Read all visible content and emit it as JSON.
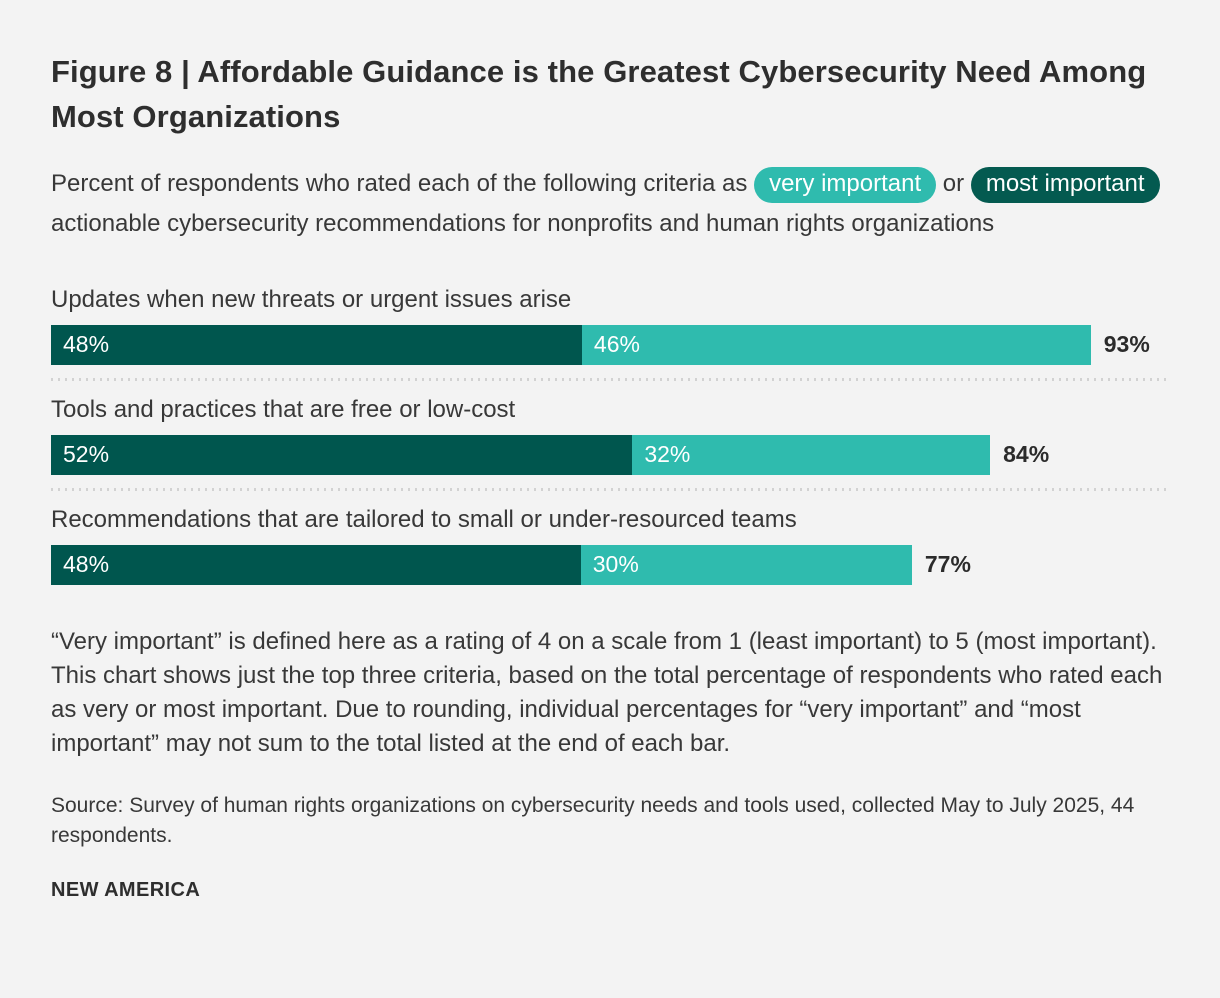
{
  "header": {
    "title": "Figure 8 | Affordable Guidance is the Greatest Cybersecurity Need Among Most Organizations",
    "subtitle_prefix": "Percent of respondents who rated each of the following criteria as ",
    "badge_very": "very important",
    "subtitle_middle": " or ",
    "badge_most": "most important",
    "subtitle_suffix": " actionable cybersecurity recommendations for nonprofits and human rights organizations"
  },
  "colors": {
    "most_important": "#00564e",
    "very_important": "#2fbbae",
    "background": "#f3f3f3",
    "text": "#383838",
    "total_label": "#2b2b2b"
  },
  "chart_data": {
    "type": "bar",
    "orientation": "horizontal",
    "stacked": true,
    "unit": "%",
    "xlim": [
      0,
      100
    ],
    "grid": false,
    "legend_position": "inline-subtitle-badges",
    "series_names": [
      "most important",
      "very important"
    ],
    "categories": [
      "Updates when new threats or urgent issues arise",
      "Tools and practices that are free or low-cost",
      "Recommendations that are tailored to small or under-resourced teams"
    ],
    "rows": [
      {
        "label": "Updates when new threats or urgent issues arise",
        "most_important": 48,
        "very_important": 46,
        "total": 93
      },
      {
        "label": "Tools and practices that are free or low-cost",
        "most_important": 52,
        "very_important": 32,
        "total": 84
      },
      {
        "label": "Recommendations that are tailored to small or under-resourced teams",
        "most_important": 48,
        "very_important": 30,
        "total": 77
      }
    ]
  },
  "notes": {
    "definition": "“Very important” is defined here as a rating of 4 on a scale from 1 (least important) to 5 (most important). This chart shows just the top three criteria, based on the total percentage of respondents who rated each as very or most important. Due to rounding, individual percentages for “very important” and “most important” may not sum to the total listed at the end of each bar.",
    "source": "Source: Survey of human rights organizations on cybersecurity needs and tools used, collected May to July 2025, 44 respondents."
  },
  "footer": {
    "logo": "NEW AMERICA"
  }
}
